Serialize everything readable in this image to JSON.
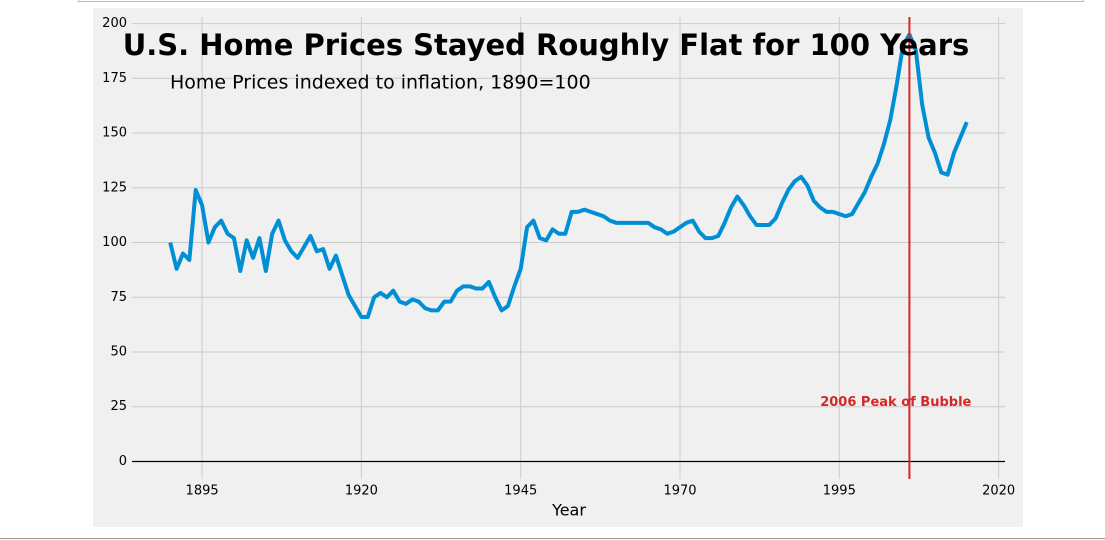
{
  "chart_data": {
    "type": "line",
    "title": "U.S. Home Prices Stayed Roughly Flat for 100 Years",
    "subtitle": "Home Prices indexed to inflation, 1890=100",
    "x_label": "Year",
    "color": "#008fd5",
    "x": [
      1890,
      1891,
      1892,
      1893,
      1894,
      1895,
      1896,
      1897,
      1898,
      1899,
      1900,
      1901,
      1902,
      1903,
      1904,
      1905,
      1906,
      1907,
      1908,
      1909,
      1910,
      1911,
      1912,
      1913,
      1914,
      1915,
      1916,
      1917,
      1918,
      1919,
      1920,
      1921,
      1922,
      1923,
      1924,
      1925,
      1926,
      1927,
      1928,
      1929,
      1930,
      1931,
      1932,
      1933,
      1934,
      1935,
      1936,
      1937,
      1938,
      1939,
      1940,
      1941,
      1942,
      1943,
      1944,
      1945,
      1946,
      1947,
      1948,
      1949,
      1950,
      1951,
      1952,
      1953,
      1954,
      1955,
      1956,
      1957,
      1958,
      1959,
      1960,
      1961,
      1962,
      1963,
      1964,
      1965,
      1966,
      1967,
      1968,
      1969,
      1970,
      1971,
      1972,
      1973,
      1974,
      1975,
      1976,
      1977,
      1978,
      1979,
      1980,
      1981,
      1982,
      1983,
      1984,
      1985,
      1986,
      1987,
      1988,
      1989,
      1990,
      1991,
      1992,
      1993,
      1994,
      1995,
      1996,
      1997,
      1998,
      1999,
      2000,
      2001,
      2002,
      2003,
      2004,
      2005,
      2006,
      2007,
      2008,
      2009,
      2010,
      2011,
      2012,
      2013,
      2014,
      2015
    ],
    "values": [
      100,
      88,
      95,
      92,
      124,
      117,
      100,
      107,
      110,
      104,
      102,
      87,
      101,
      93,
      102,
      87,
      104,
      110,
      101,
      96,
      93,
      98,
      103,
      96,
      97,
      88,
      94,
      85,
      76,
      71,
      66,
      66,
      75,
      77,
      75,
      78,
      73,
      72,
      74,
      73,
      70,
      69,
      69,
      73,
      73,
      78,
      80,
      80,
      79,
      79,
      82,
      75,
      69,
      71,
      80,
      88,
      107,
      110,
      102,
      101,
      106,
      104,
      104,
      114,
      114,
      115,
      114,
      113,
      112,
      110,
      109,
      109,
      109,
      109,
      109,
      109,
      107,
      106,
      104,
      105,
      107,
      109,
      110,
      105,
      102,
      102,
      103,
      109,
      116,
      121,
      117,
      112,
      108,
      108,
      108,
      111,
      118,
      124,
      128,
      130,
      126,
      119,
      116,
      114,
      114,
      113,
      112,
      113,
      118,
      123,
      130,
      136,
      145,
      156,
      172,
      190,
      195,
      188,
      163,
      148,
      141,
      132,
      131,
      141,
      148,
      155
    ],
    "xlim": [
      1884,
      2021
    ],
    "ylim": [
      -8,
      203
    ],
    "xticks": [
      1895,
      1920,
      1945,
      1970,
      1995,
      2020
    ],
    "yticks": [
      0,
      25,
      50,
      75,
      100,
      125,
      150,
      175,
      200
    ],
    "grid": true,
    "vline": {
      "x": 2006,
      "color": "#d62728"
    },
    "annotation": {
      "text": "2006 Peak of Bubble",
      "x": 1992,
      "y": 27,
      "color": "#d62728"
    }
  }
}
